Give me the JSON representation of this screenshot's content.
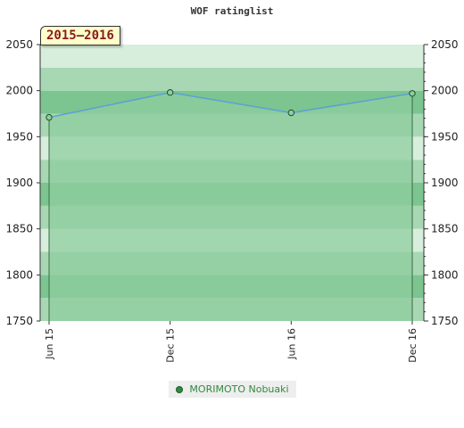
{
  "chart_data": {
    "type": "area",
    "title": "WOF ratinglist",
    "period_label": "2015–2016",
    "categories": [
      "Jun 15",
      "Dec 15",
      "Jun 16",
      "Dec 16"
    ],
    "series": [
      {
        "name": "MORIMOTO Nobuaki",
        "values": [
          1971,
          1998,
          1976,
          1997
        ]
      }
    ],
    "ylim": [
      1750,
      2050
    ],
    "yticks": [
      1750,
      1800,
      1850,
      1900,
      1950,
      2000,
      2050
    ],
    "y_axis_both_sides": true,
    "grid": "horizontal bands",
    "legend_position": "bottom",
    "colors": {
      "area_fill": "#8fcd9f",
      "line": "#5aa0d8",
      "marker": "#2e8b3e",
      "band_light": "#d6eedb",
      "band_mid": "#a7d8b3",
      "band_dark": "#7cc490"
    }
  }
}
